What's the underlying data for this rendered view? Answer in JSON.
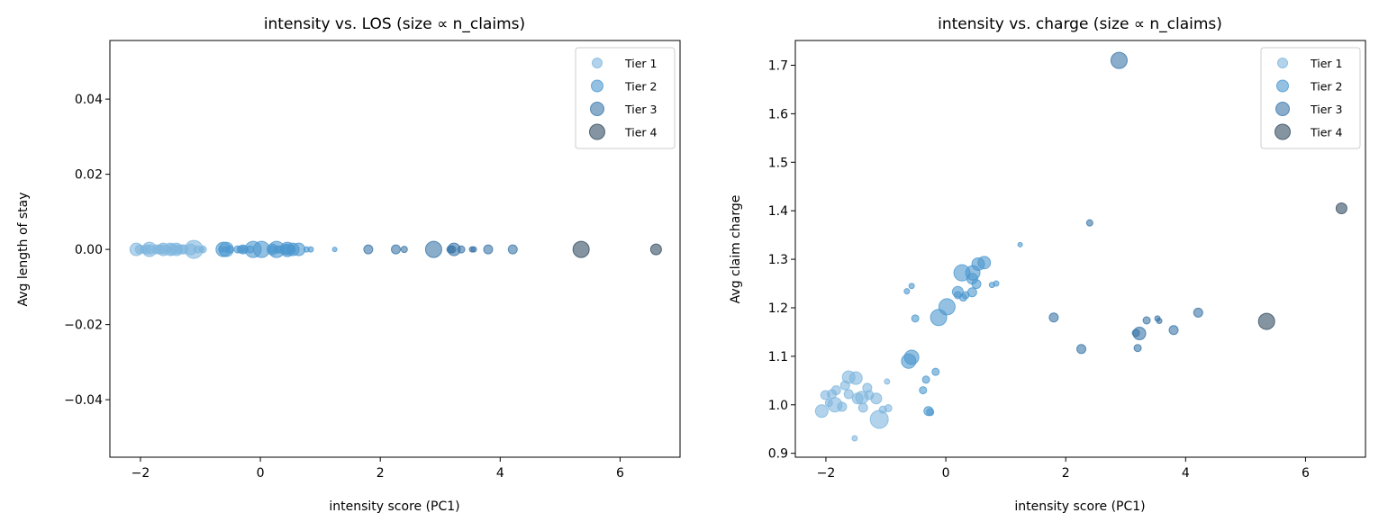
{
  "chart_data": [
    {
      "type": "scatter",
      "title": "intensity vs. LOS (size ∝ n_claims)",
      "xlabel": "intensity score (PC1)",
      "ylabel": "Avg length of stay",
      "xlim": [
        -2.51,
        7.0
      ],
      "ylim": [
        -0.0553,
        0.0556
      ],
      "xticks": [
        -2,
        0,
        2,
        4,
        6
      ],
      "xtick_labels": [
        "−2",
        "0",
        "2",
        "4",
        "6"
      ],
      "yticks": [
        -0.04,
        -0.02,
        0.0,
        0.02,
        0.04
      ],
      "ytick_labels": [
        "−0.04",
        "−0.02",
        "0.00",
        "0.02",
        "0.04"
      ],
      "grid": false,
      "legend_position": "top-right",
      "y_field": "los"
    },
    {
      "type": "scatter",
      "title": "intensity vs. charge (size ∝ n_claims)",
      "xlabel": "intensity score (PC1)",
      "ylabel": "Avg claim charge",
      "xlim": [
        -2.51,
        7.0
      ],
      "ylim": [
        0.892,
        1.751
      ],
      "xticks": [
        -2,
        0,
        2,
        4,
        6
      ],
      "xtick_labels": [
        "−2",
        "0",
        "2",
        "4",
        "6"
      ],
      "yticks": [
        0.9,
        1.0,
        1.1,
        1.2,
        1.3,
        1.4,
        1.5,
        1.6,
        1.7
      ],
      "ytick_labels": [
        "0.9",
        "1.0",
        "1.1",
        "1.2",
        "1.3",
        "1.4",
        "1.5",
        "1.6",
        "1.7"
      ],
      "grid": false,
      "legend_position": "top-right",
      "y_field": "charge"
    }
  ],
  "legend": [
    {
      "name": "Tier 1",
      "color": "#7fb6dd"
    },
    {
      "name": "Tier 2",
      "color": "#4c98cf"
    },
    {
      "name": "Tier 3",
      "color": "#3b76a8"
    },
    {
      "name": "Tier 4",
      "color": "#334c62"
    }
  ],
  "points_fields": [
    "intensity",
    "charge",
    "los",
    "relative_size",
    "tier"
  ],
  "points": [
    [
      -2.07,
      0.987,
      0,
      7,
      1
    ],
    [
      -2.01,
      1.02,
      0,
      5,
      1
    ],
    [
      -1.95,
      1.004,
      0,
      4,
      1
    ],
    [
      -1.9,
      1.022,
      0,
      5,
      1
    ],
    [
      -1.85,
      1.0,
      0,
      8,
      1
    ],
    [
      -1.83,
      1.03,
      0,
      5,
      1
    ],
    [
      -1.73,
      0.996,
      0,
      5,
      1
    ],
    [
      -1.68,
      1.04,
      0,
      5,
      1
    ],
    [
      -1.62,
      1.057,
      0,
      7,
      1
    ],
    [
      -1.62,
      1.022,
      0,
      5,
      1
    ],
    [
      -1.52,
      0.931,
      0,
      3,
      1
    ],
    [
      -1.5,
      1.055,
      0,
      7,
      1
    ],
    [
      -1.47,
      1.013,
      0,
      6,
      1
    ],
    [
      -1.4,
      1.015,
      0,
      7,
      1
    ],
    [
      -1.38,
      0.994,
      0,
      5,
      1
    ],
    [
      -1.31,
      1.035,
      0,
      5,
      1
    ],
    [
      -1.28,
      1.02,
      0,
      5,
      1
    ],
    [
      -1.16,
      1.013,
      0,
      6,
      1
    ],
    [
      -1.11,
      0.97,
      0,
      10,
      1
    ],
    [
      -1.05,
      0.99,
      0,
      4,
      1
    ],
    [
      -0.98,
      1.048,
      0,
      3,
      1
    ],
    [
      -0.96,
      0.993,
      0,
      4,
      1
    ],
    [
      -0.65,
      1.234,
      0,
      3,
      2
    ],
    [
      -0.62,
      1.09,
      0,
      8,
      2
    ],
    [
      -0.57,
      1.098,
      0,
      8,
      2
    ],
    [
      -0.57,
      1.245,
      0,
      3,
      2
    ],
    [
      -0.51,
      1.178,
      0,
      4,
      2
    ],
    [
      -0.38,
      1.03,
      0,
      4,
      2
    ],
    [
      -0.33,
      1.052,
      0,
      4,
      2
    ],
    [
      -0.29,
      0.987,
      0,
      5,
      2
    ],
    [
      -0.26,
      0.985,
      0,
      4,
      2
    ],
    [
      -0.17,
      1.068,
      0,
      4,
      2
    ],
    [
      -0.12,
      1.18,
      0,
      9,
      2
    ],
    [
      0.02,
      1.202,
      0,
      9,
      2
    ],
    [
      0.2,
      1.233,
      0,
      6,
      2
    ],
    [
      0.2,
      1.226,
      0,
      4,
      2
    ],
    [
      0.27,
      1.272,
      0,
      9,
      2
    ],
    [
      0.29,
      1.221,
      0,
      4,
      2
    ],
    [
      0.33,
      1.226,
      0,
      4,
      2
    ],
    [
      0.44,
      1.26,
      0,
      6,
      2
    ],
    [
      0.44,
      1.232,
      0,
      5,
      2
    ],
    [
      0.45,
      1.272,
      0,
      8,
      2
    ],
    [
      0.51,
      1.249,
      0,
      5,
      2
    ],
    [
      0.54,
      1.29,
      0,
      7,
      2
    ],
    [
      0.64,
      1.293,
      0,
      7,
      2
    ],
    [
      0.77,
      1.247,
      0,
      3,
      2
    ],
    [
      0.84,
      1.25,
      0,
      3,
      2
    ],
    [
      1.24,
      1.33,
      0,
      2.5,
      2
    ],
    [
      1.8,
      1.18,
      0,
      5,
      3
    ],
    [
      2.26,
      1.115,
      0,
      5,
      3
    ],
    [
      2.4,
      1.375,
      0,
      3.5,
      3
    ],
    [
      2.89,
      1.71,
      0,
      9,
      3
    ],
    [
      3.17,
      1.148,
      0,
      4,
      3
    ],
    [
      3.2,
      1.117,
      0,
      4,
      3
    ],
    [
      3.23,
      1.147,
      0,
      7,
      3
    ],
    [
      3.35,
      1.174,
      0,
      4,
      3
    ],
    [
      3.53,
      1.178,
      0,
      3,
      3
    ],
    [
      3.56,
      1.173,
      0,
      3,
      3
    ],
    [
      3.8,
      1.154,
      0,
      5,
      3
    ],
    [
      4.21,
      1.19,
      0,
      5,
      3
    ],
    [
      5.35,
      1.172,
      0,
      9,
      4
    ],
    [
      6.6,
      1.405,
      0,
      6,
      4
    ]
  ]
}
